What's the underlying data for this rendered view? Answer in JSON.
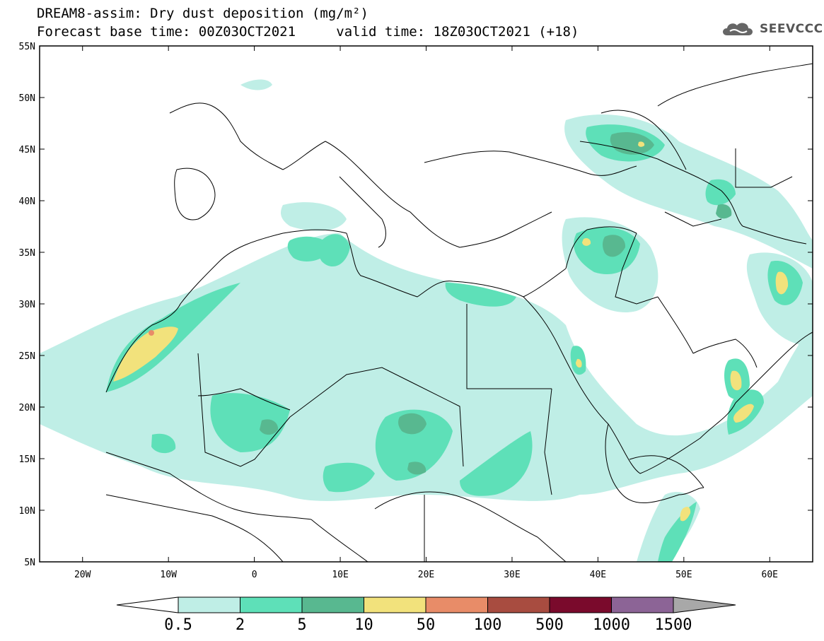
{
  "title": {
    "line1": "DREAM8-assim: Dry dust deposition (mg/m²)",
    "line2_left": "Forecast base time: 00Z03OCT2021",
    "line2_right": "valid time: 18Z03OCT2021 (+18)"
  },
  "logo": {
    "text": "SEEVCCC",
    "icon": "cloud-logo-icon"
  },
  "map": {
    "lon_range": [
      -25,
      65
    ],
    "lat_range": [
      5,
      55
    ],
    "lat_ticks": [
      "55N",
      "50N",
      "45N",
      "40N",
      "35N",
      "30N",
      "25N",
      "20N",
      "15N",
      "10N",
      "5N"
    ],
    "lon_ticks": [
      "20W",
      "10W",
      "0",
      "10E",
      "20E",
      "30E",
      "40E",
      "50E",
      "60E"
    ]
  },
  "colorbar": {
    "labels": [
      "0.5",
      "2",
      "5",
      "10",
      "50",
      "100",
      "500",
      "1000",
      "1500"
    ],
    "colors": [
      "#bfeee6",
      "#5ee0b8",
      "#58b890",
      "#f2e27c",
      "#e88c68",
      "#a84c40",
      "#7a0a2c",
      "#8c6496",
      "#a8a8a8"
    ],
    "under_color": "#ffffff"
  }
}
